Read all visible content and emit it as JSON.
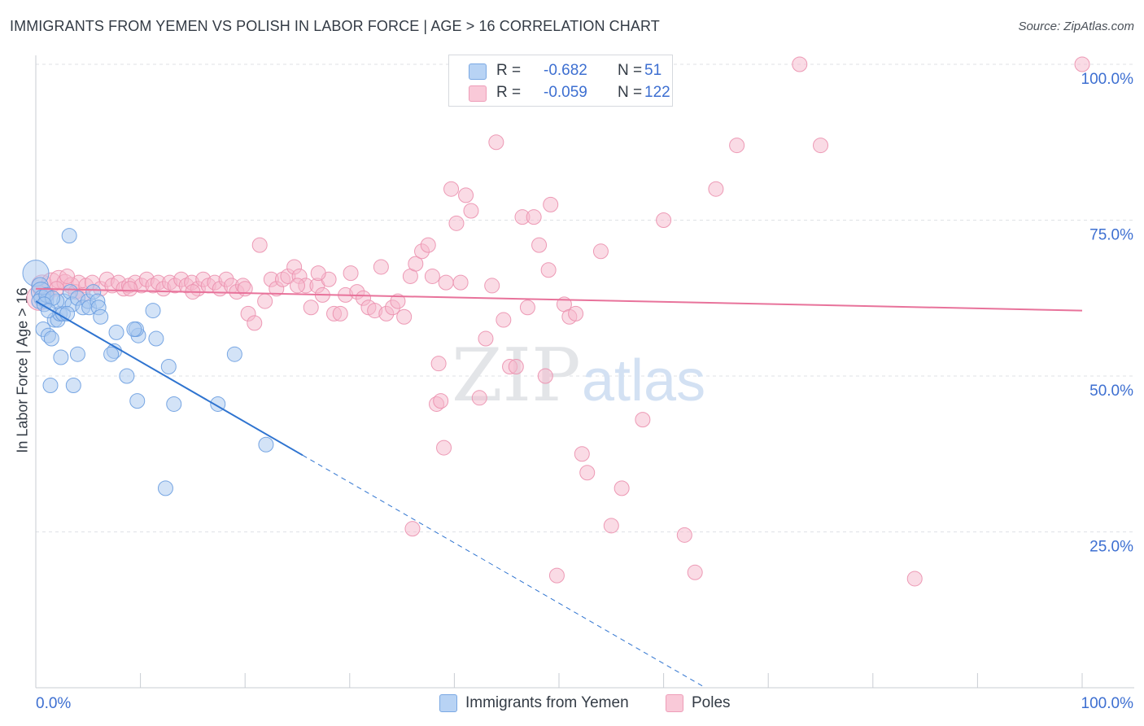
{
  "header": {
    "title": "IMMIGRANTS FROM YEMEN VS POLISH IN LABOR FORCE | AGE > 16 CORRELATION CHART",
    "source": "Source: ZipAtlas.com"
  },
  "watermark": {
    "zip": "ZIP",
    "atlas": "atlas"
  },
  "legend": {
    "series1": {
      "r_label": "R =",
      "r_value": "-0.682",
      "n_label": "N =",
      "n_value": "51"
    },
    "series2": {
      "r_label": "R =",
      "r_value": "-0.059",
      "n_label": "N =",
      "n_value": "122"
    }
  },
  "colors": {
    "blue_fill": "#a8c8f0",
    "blue_stroke": "#6a9de0",
    "blue_line": "#2f74d0",
    "pink_fill": "#f6b8cc",
    "pink_stroke": "#eb90ae",
    "pink_line": "#e8739b",
    "grid": "#dfe2e6",
    "tick_text": "#3d6fd1"
  },
  "chart_data": {
    "type": "scatter",
    "title": "IMMIGRANTS FROM YEMEN VS POLISH IN LABOR FORCE | AGE > 16 CORRELATION CHART",
    "xlabel": "",
    "ylabel": "In Labor Force | Age > 16",
    "xlim": [
      0,
      100
    ],
    "ylim": [
      0,
      100
    ],
    "x_tick_labels": [
      "0.0%",
      "100.0%"
    ],
    "y_ticks": [
      25,
      50,
      75,
      100
    ],
    "y_tick_labels": [
      "25.0%",
      "50.0%",
      "75.0%",
      "100.0%"
    ],
    "legend_bottom": [
      "Immigrants from Yemen",
      "Poles"
    ],
    "series": [
      {
        "name": "Immigrants from Yemen",
        "color": "#6a9de0",
        "trend": {
          "x_start": 0,
          "y_start": 62.0,
          "x_solid_end": 25.5,
          "x_dash_end": 64
        },
        "points": [
          [
            0.0,
            66.5,
            16
          ],
          [
            0.4,
            64.5,
            10
          ],
          [
            0.5,
            63.5,
            12
          ],
          [
            0.6,
            62.5,
            10
          ],
          [
            0.3,
            62.0,
            9
          ],
          [
            1.0,
            62.0,
            9
          ],
          [
            0.7,
            57.5,
            9
          ],
          [
            1.2,
            56.5,
            9
          ],
          [
            1.5,
            56.0,
            9
          ],
          [
            1.8,
            59.0,
            9
          ],
          [
            2.1,
            59.0,
            9
          ],
          [
            2.3,
            60.0,
            9
          ],
          [
            2.6,
            60.0,
            9
          ],
          [
            1.4,
            48.5,
            9
          ],
          [
            2.4,
            53.0,
            9
          ],
          [
            2.7,
            62.0,
            9
          ],
          [
            3.3,
            63.5,
            9
          ],
          [
            3.5,
            61.5,
            9
          ],
          [
            3.6,
            48.5,
            9
          ],
          [
            3.2,
            72.5,
            9
          ],
          [
            4.0,
            62.5,
            9
          ],
          [
            4.0,
            53.5,
            9
          ],
          [
            4.5,
            61.0,
            9
          ],
          [
            5.0,
            62.0,
            9
          ],
          [
            5.1,
            61.0,
            9
          ],
          [
            5.5,
            63.5,
            9
          ],
          [
            5.9,
            62.0,
            9
          ],
          [
            6.0,
            61.0,
            9
          ],
          [
            6.2,
            59.5,
            9
          ],
          [
            7.5,
            54.0,
            9
          ],
          [
            7.7,
            57.0,
            9
          ],
          [
            7.2,
            53.5,
            9
          ],
          [
            8.7,
            50.0,
            9
          ],
          [
            9.7,
            46.0,
            9
          ],
          [
            9.8,
            56.5,
            9
          ],
          [
            9.6,
            57.5,
            9
          ],
          [
            11.5,
            56.0,
            9
          ],
          [
            9.4,
            57.5,
            9
          ],
          [
            11.2,
            60.5,
            9
          ],
          [
            12.7,
            51.5,
            9
          ],
          [
            12.4,
            32.0,
            9
          ],
          [
            13.2,
            45.5,
            9
          ],
          [
            17.4,
            45.5,
            9
          ],
          [
            19.0,
            53.5,
            9
          ],
          [
            22.0,
            39.0,
            9
          ],
          [
            1.0,
            63.0,
            9
          ],
          [
            2.0,
            62.0,
            9
          ],
          [
            1.6,
            62.5,
            9
          ],
          [
            0.8,
            61.5,
            9
          ],
          [
            3.0,
            60.0,
            9
          ],
          [
            1.2,
            60.5,
            9
          ]
        ]
      },
      {
        "name": "Poles",
        "color": "#eb90ae",
        "trend": {
          "x_start": 0,
          "y_start": 64.0,
          "x_end": 100,
          "y_end": 60.5
        },
        "points": [
          [
            0.3,
            62.5,
            15
          ],
          [
            0.6,
            64.5,
            13
          ],
          [
            1.5,
            65.0,
            12
          ],
          [
            2.2,
            65.5,
            11
          ],
          [
            2.8,
            65.0,
            10
          ],
          [
            3.4,
            64.5,
            10
          ],
          [
            3.8,
            63.5,
            9
          ],
          [
            4.1,
            65.0,
            9
          ],
          [
            4.8,
            64.5,
            9
          ],
          [
            5.4,
            65.0,
            9
          ],
          [
            6.2,
            64.0,
            9
          ],
          [
            6.8,
            65.5,
            9
          ],
          [
            7.3,
            64.5,
            9
          ],
          [
            7.9,
            65.0,
            9
          ],
          [
            8.4,
            64.0,
            9
          ],
          [
            8.9,
            64.5,
            9
          ],
          [
            9.5,
            65.0,
            9
          ],
          [
            10.1,
            64.5,
            9
          ],
          [
            10.6,
            65.5,
            9
          ],
          [
            11.2,
            64.5,
            9
          ],
          [
            11.7,
            65.0,
            9
          ],
          [
            12.2,
            64.0,
            9
          ],
          [
            12.8,
            65.0,
            9
          ],
          [
            13.3,
            64.5,
            9
          ],
          [
            13.9,
            65.5,
            9
          ],
          [
            14.4,
            64.5,
            9
          ],
          [
            14.9,
            65.0,
            9
          ],
          [
            15.5,
            64.0,
            9
          ],
          [
            16.0,
            65.5,
            9
          ],
          [
            16.5,
            64.5,
            9
          ],
          [
            17.1,
            65.0,
            9
          ],
          [
            17.6,
            64.0,
            9
          ],
          [
            18.2,
            65.5,
            9
          ],
          [
            18.7,
            64.5,
            9
          ],
          [
            19.2,
            63.5,
            9
          ],
          [
            19.8,
            64.5,
            9
          ],
          [
            20.3,
            60.0,
            9
          ],
          [
            20.9,
            58.5,
            9
          ],
          [
            21.4,
            71.0,
            9
          ],
          [
            21.9,
            62.0,
            9
          ],
          [
            22.5,
            65.5,
            9
          ],
          [
            23.0,
            64.0,
            9
          ],
          [
            23.6,
            65.5,
            9
          ],
          [
            24.1,
            66.0,
            9
          ],
          [
            24.7,
            67.5,
            9
          ],
          [
            25.2,
            66.0,
            9
          ],
          [
            25.8,
            64.5,
            9
          ],
          [
            26.3,
            61.0,
            9
          ],
          [
            26.9,
            64.5,
            9
          ],
          [
            27.4,
            63.0,
            9
          ],
          [
            28.0,
            65.5,
            9
          ],
          [
            28.5,
            60.0,
            9
          ],
          [
            29.1,
            60.0,
            9
          ],
          [
            29.6,
            63.0,
            9
          ],
          [
            30.1,
            66.5,
            9
          ],
          [
            30.7,
            63.5,
            9
          ],
          [
            31.3,
            62.5,
            9
          ],
          [
            31.8,
            61.0,
            9
          ],
          [
            32.4,
            60.5,
            9
          ],
          [
            33.0,
            67.5,
            9
          ],
          [
            33.5,
            60.0,
            9
          ],
          [
            34.1,
            61.0,
            9
          ],
          [
            34.6,
            62.0,
            9
          ],
          [
            35.2,
            59.5,
            9
          ],
          [
            35.8,
            66.0,
            9
          ],
          [
            36.3,
            68.0,
            9
          ],
          [
            36.9,
            70.0,
            9
          ],
          [
            37.5,
            71.0,
            9
          ],
          [
            37.9,
            66.0,
            9
          ],
          [
            38.3,
            45.5,
            9
          ],
          [
            38.7,
            46.0,
            9
          ],
          [
            39.2,
            65.0,
            9
          ],
          [
            39.7,
            80.0,
            9
          ],
          [
            40.2,
            74.5,
            9
          ],
          [
            40.6,
            65.0,
            9
          ],
          [
            41.1,
            79.0,
            9
          ],
          [
            41.6,
            76.5,
            9
          ],
          [
            42.4,
            46.5,
            9
          ],
          [
            43.0,
            56.0,
            9
          ],
          [
            43.6,
            64.5,
            9
          ],
          [
            44.0,
            87.5,
            9
          ],
          [
            44.7,
            59.0,
            9
          ],
          [
            45.3,
            51.5,
            9
          ],
          [
            45.9,
            51.5,
            9
          ],
          [
            46.5,
            75.5,
            9
          ],
          [
            47.0,
            61.0,
            9
          ],
          [
            47.6,
            75.5,
            9
          ],
          [
            48.1,
            71.0,
            9
          ],
          [
            48.7,
            50.0,
            9
          ],
          [
            49.2,
            77.5,
            9
          ],
          [
            49.8,
            18.0,
            9
          ],
          [
            50.5,
            61.5,
            9
          ],
          [
            51.0,
            59.5,
            9
          ],
          [
            51.6,
            60.0,
            9
          ],
          [
            52.2,
            37.5,
            9
          ],
          [
            52.7,
            34.5,
            9
          ],
          [
            54.0,
            70.0,
            9
          ],
          [
            55.0,
            26.0,
            9
          ],
          [
            56.0,
            32.0,
            9
          ],
          [
            58.0,
            43.0,
            9
          ],
          [
            60.0,
            75.0,
            9
          ],
          [
            62.0,
            24.5,
            9
          ],
          [
            63.0,
            18.5,
            9
          ],
          [
            65.0,
            80.0,
            9
          ],
          [
            67.0,
            87.0,
            9
          ],
          [
            73.0,
            100.0,
            9
          ],
          [
            75.0,
            87.0,
            9
          ],
          [
            84.0,
            17.5,
            9
          ],
          [
            100.0,
            100.0,
            9
          ],
          [
            38.5,
            52.0,
            9
          ],
          [
            36.0,
            25.5,
            9
          ],
          [
            39.0,
            38.5,
            9
          ],
          [
            25.0,
            64.5,
            9
          ],
          [
            27.0,
            66.5,
            9
          ],
          [
            2.0,
            64.0,
            9
          ],
          [
            1.1,
            63.0,
            9
          ],
          [
            3.0,
            66.0,
            9
          ],
          [
            4.5,
            63.0,
            9
          ],
          [
            9.0,
            64.0,
            9
          ],
          [
            15.0,
            63.5,
            9
          ],
          [
            20.0,
            64.0,
            9
          ],
          [
            49.0,
            67.0,
            9
          ]
        ]
      }
    ]
  }
}
